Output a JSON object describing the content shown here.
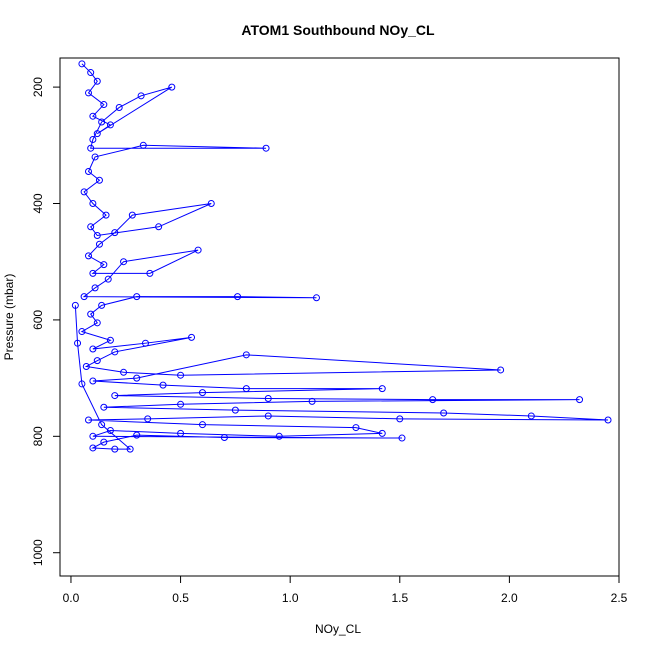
{
  "chart_data": {
    "type": "scatter",
    "title": "ATOM1 Southbound NOy_CL",
    "xlabel": "NOy_CL",
    "ylabel": "Pressure (mbar)",
    "xlim": [
      -0.05,
      2.5
    ],
    "ylim": [
      1040,
      150
    ],
    "y_reversed": true,
    "x_ticks": [
      "0.0",
      "0.5",
      "1.0",
      "1.5",
      "2.0",
      "2.5"
    ],
    "y_ticks": [
      "200",
      "400",
      "600",
      "800",
      "1000"
    ],
    "grid": false,
    "legend": "none",
    "connect_points": true,
    "marker": "open-circle",
    "color": "#0000ff",
    "series": [
      {
        "values": [
          [
            0.05,
            160
          ],
          [
            0.09,
            175
          ],
          [
            0.12,
            190
          ],
          [
            0.08,
            210
          ],
          [
            0.15,
            230
          ],
          [
            0.1,
            250
          ],
          [
            0.18,
            265
          ],
          [
            0.12,
            280
          ],
          [
            0.46,
            200
          ],
          [
            0.32,
            215
          ],
          [
            0.22,
            235
          ],
          [
            0.14,
            260
          ],
          [
            0.1,
            290
          ],
          [
            0.09,
            305
          ],
          [
            0.89,
            305
          ],
          [
            0.33,
            300
          ],
          [
            0.11,
            320
          ],
          [
            0.08,
            345
          ],
          [
            0.13,
            360
          ],
          [
            0.06,
            380
          ],
          [
            0.1,
            400
          ],
          [
            0.16,
            420
          ],
          [
            0.09,
            440
          ],
          [
            0.12,
            455
          ],
          [
            0.4,
            440
          ],
          [
            0.64,
            400
          ],
          [
            0.28,
            420
          ],
          [
            0.2,
            450
          ],
          [
            0.13,
            470
          ],
          [
            0.08,
            490
          ],
          [
            0.15,
            505
          ],
          [
            0.1,
            520
          ],
          [
            0.36,
            520
          ],
          [
            0.58,
            480
          ],
          [
            0.24,
            500
          ],
          [
            0.17,
            530
          ],
          [
            0.11,
            545
          ],
          [
            0.06,
            560
          ],
          [
            1.12,
            562
          ],
          [
            0.76,
            560
          ],
          [
            0.3,
            560
          ],
          [
            0.14,
            575
          ],
          [
            0.09,
            590
          ],
          [
            0.12,
            605
          ],
          [
            0.05,
            620
          ],
          [
            0.18,
            635
          ],
          [
            0.1,
            650
          ],
          [
            0.34,
            640
          ],
          [
            0.55,
            630
          ],
          [
            0.2,
            655
          ],
          [
            0.12,
            670
          ],
          [
            0.07,
            680
          ],
          [
            0.24,
            690
          ],
          [
            0.5,
            695
          ],
          [
            1.96,
            686
          ],
          [
            0.8,
            660
          ],
          [
            0.3,
            700
          ],
          [
            0.1,
            705
          ],
          [
            0.42,
            712
          ],
          [
            0.8,
            718
          ],
          [
            1.42,
            718
          ],
          [
            0.6,
            725
          ],
          [
            0.2,
            730
          ],
          [
            0.9,
            735
          ],
          [
            1.65,
            737
          ],
          [
            2.32,
            737
          ],
          [
            1.1,
            740
          ],
          [
            0.5,
            745
          ],
          [
            0.15,
            750
          ],
          [
            0.75,
            755
          ],
          [
            1.7,
            760
          ],
          [
            2.1,
            765
          ],
          [
            2.45,
            772
          ],
          [
            1.5,
            770
          ],
          [
            0.9,
            765
          ],
          [
            0.35,
            770
          ],
          [
            0.08,
            772
          ],
          [
            0.6,
            780
          ],
          [
            1.3,
            785
          ],
          [
            1.42,
            795
          ],
          [
            0.95,
            800
          ],
          [
            0.5,
            795
          ],
          [
            0.18,
            790
          ],
          [
            0.1,
            800
          ],
          [
            1.51,
            803
          ],
          [
            0.7,
            802
          ],
          [
            0.3,
            798
          ],
          [
            0.15,
            810
          ],
          [
            0.1,
            820
          ],
          [
            0.2,
            822
          ],
          [
            0.27,
            822
          ],
          [
            0.14,
            780
          ],
          [
            0.05,
            710
          ],
          [
            0.03,
            640
          ],
          [
            0.02,
            575
          ]
        ]
      }
    ]
  }
}
